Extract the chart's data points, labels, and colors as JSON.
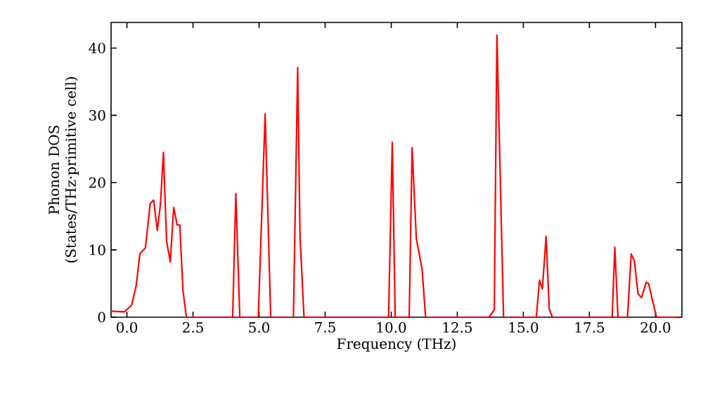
{
  "chart_data": {
    "type": "line",
    "xlabel": "Frequency (THz)",
    "ylabel": "Phonon DOS (States/THz·primitive cell)",
    "x": [
      -0.6,
      -0.09,
      0.18,
      0.35,
      0.49,
      0.7,
      0.88,
      1.01,
      1.15,
      1.27,
      1.38,
      1.5,
      1.64,
      1.77,
      1.9,
      2.0,
      2.12,
      2.25,
      4.0,
      4.12,
      4.27,
      4.97,
      5.23,
      5.44,
      6.3,
      6.46,
      6.55,
      6.7,
      9.9,
      10.04,
      10.15,
      10.68,
      10.79,
      10.95,
      11.17,
      11.3,
      13.7,
      13.9,
      14.0,
      14.25,
      15.49,
      15.61,
      15.72,
      15.86,
      15.98,
      16.1,
      18.36,
      18.46,
      18.58,
      18.94,
      19.08,
      19.2,
      19.34,
      19.47,
      19.65,
      19.74,
      19.88,
      20.04,
      21.0
    ],
    "series": [
      {
        "color": "#ff0000",
        "values": [
          0.9,
          0.8,
          1.8,
          4.7,
          9.4,
          10.3,
          16.9,
          17.4,
          12.9,
          16.9,
          24.5,
          11.3,
          8.2,
          16.3,
          13.7,
          13.7,
          4.0,
          0,
          0,
          18.4,
          0,
          0,
          30.2,
          0,
          0,
          37.1,
          12,
          0,
          0,
          26,
          0,
          0,
          25.2,
          11.7,
          7.1,
          0,
          0,
          1.1,
          41.9,
          0,
          0,
          5.5,
          4.2,
          12.0,
          1.2,
          0,
          0,
          10.4,
          0,
          0,
          9.4,
          8.4,
          3.5,
          2.9,
          5.2,
          5.0,
          2.6,
          0,
          0
        ]
      }
    ],
    "xlim": [
      -0.6,
      21.0
    ],
    "ylim": [
      0,
      43.8
    ],
    "xticks": [
      {
        "value": 0,
        "label": "0.0"
      },
      2.5,
      {
        "value": 5,
        "label": "5.0"
      },
      7.5,
      {
        "value": 10,
        "label": "10.0"
      },
      12.5,
      {
        "value": 15,
        "label": "15.0"
      },
      17.5,
      {
        "value": 20,
        "label": "20.0"
      }
    ],
    "yticks": [
      0,
      10,
      20,
      30,
      40
    ],
    "grid": false,
    "marker": "none",
    "line_style": "solid"
  }
}
